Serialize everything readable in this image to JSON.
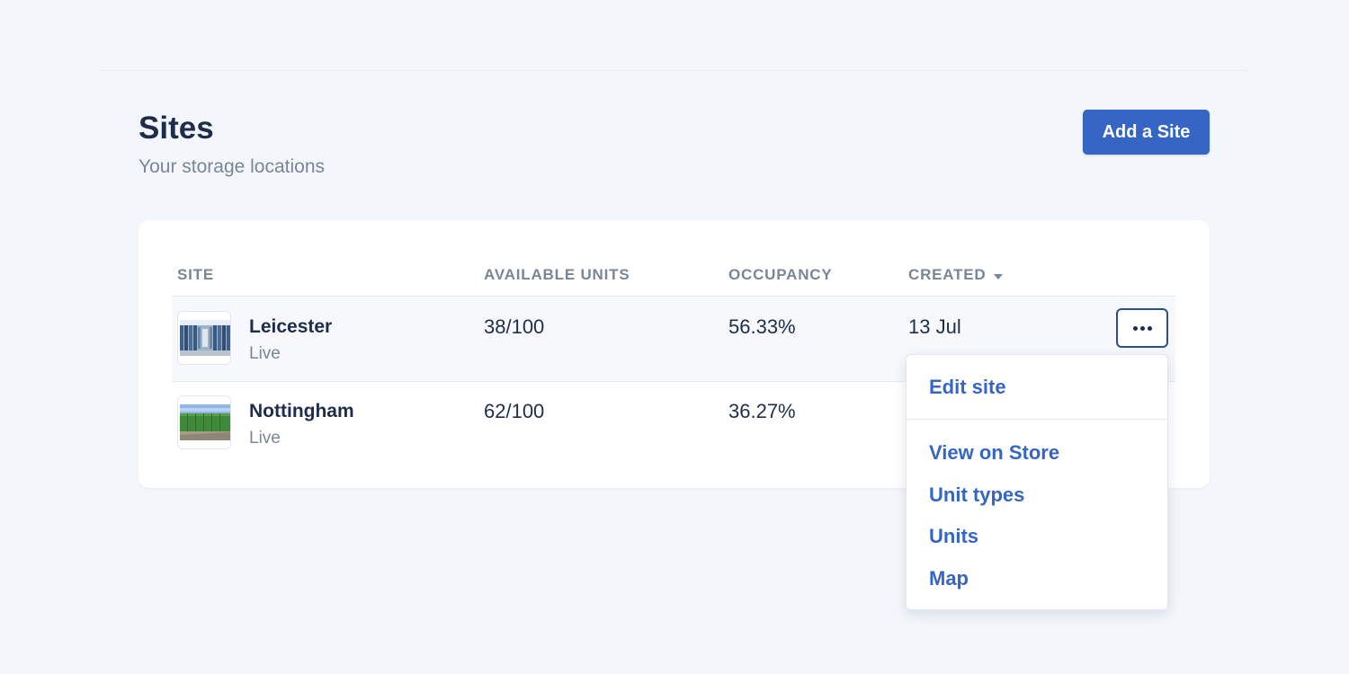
{
  "header": {
    "title": "Sites",
    "subtitle": "Your storage locations",
    "add_button_label": "Add a Site"
  },
  "table": {
    "columns": {
      "site": "SITE",
      "available_units": "AVAILABLE UNITS",
      "occupancy": "OCCUPANCY",
      "created": "CREATED"
    },
    "sort": {
      "column": "created",
      "direction": "descending"
    },
    "rows": [
      {
        "name": "Leicester",
        "status": "Live",
        "available_units": "38/100",
        "occupancy": "56.33%",
        "created": "13 Jul",
        "thumbnail": "storage-corridor-photo"
      },
      {
        "name": "Nottingham",
        "status": "Live",
        "available_units": "62/100",
        "occupancy": "36.27%",
        "created": "",
        "thumbnail": "green-containers-photo"
      }
    ]
  },
  "row_menu": {
    "trigger_icon": "more-horizontal-icon",
    "groups": [
      [
        "Edit site"
      ],
      [
        "View on Store",
        "Unit types",
        "Units",
        "Map"
      ]
    ]
  },
  "colors": {
    "background": "#f3f6fa",
    "primary": "#3566c4",
    "heading": "#1f2d4d",
    "muted": "#7a8597"
  }
}
